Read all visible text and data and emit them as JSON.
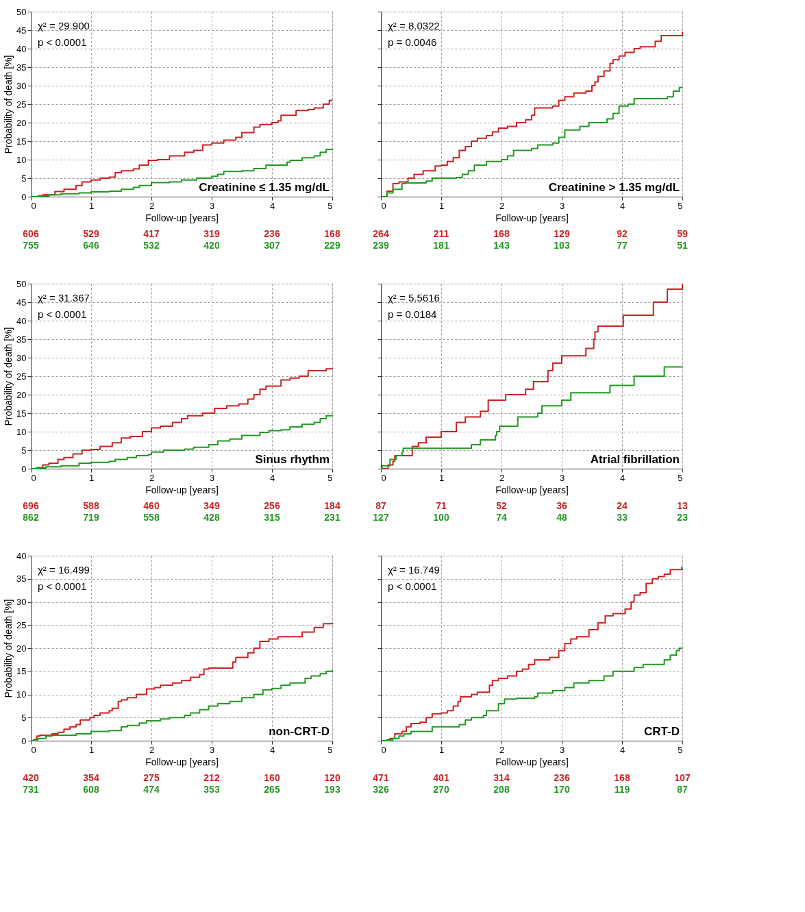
{
  "chart_data": [
    {
      "type": "step",
      "title": "Creatinine ≤ 1.35 mg/dL",
      "xlabel": "Follow-up [years]",
      "ylabel": "Probability of death [%]",
      "xlim": [
        0,
        5
      ],
      "xticks": [
        0,
        1,
        2,
        3,
        4,
        5
      ],
      "ylim": [
        0,
        50
      ],
      "yticks": [
        0,
        5,
        10,
        15,
        20,
        25,
        30,
        35,
        40,
        45,
        50
      ],
      "grid": true,
      "annotations": [
        "χ² =  29.900",
        "p  < 0.0001",
        "606",
        "529",
        "417",
        "319",
        "236",
        "168",
        "755",
        "646",
        "532",
        "420",
        "307",
        "229"
      ],
      "series": [
        {
          "color": "#cc2222",
          "x": [
            0,
            0.12,
            0.2,
            0.4,
            0.55,
            0.75,
            0.85,
            1.0,
            1.15,
            1.3,
            1.4,
            1.5,
            1.7,
            1.8,
            1.95,
            2.1,
            2.3,
            2.55,
            2.7,
            2.85,
            3.0,
            3.2,
            3.4,
            3.5,
            3.7,
            3.8,
            4.0,
            4.1,
            4.15,
            4.4,
            4.6,
            4.7,
            4.85,
            4.95,
            5.0
          ],
          "values": [
            0,
            0.2,
            0.5,
            1.4,
            2,
            3,
            4,
            4.5,
            5,
            5.3,
            6.5,
            7,
            7.5,
            8.5,
            9.8,
            10,
            11,
            12,
            12.5,
            14,
            14.5,
            15.3,
            16,
            17.3,
            18.8,
            19.5,
            20,
            20.5,
            22,
            23.3,
            23.5,
            24,
            25,
            26,
            26
          ]
        },
        {
          "color": "#229922",
          "x": [
            0,
            0.15,
            0.3,
            0.5,
            0.8,
            1.0,
            1.3,
            1.5,
            1.7,
            1.8,
            2.0,
            2.3,
            2.5,
            2.75,
            3.0,
            3.1,
            3.2,
            3.5,
            3.7,
            3.9,
            4.25,
            4.3,
            4.5,
            4.7,
            4.8,
            4.9,
            5.0
          ],
          "values": [
            0,
            0.2,
            0.5,
            0.8,
            1,
            1.3,
            1.5,
            2,
            2.5,
            3,
            3.8,
            4,
            4.5,
            5,
            5.5,
            6,
            6.8,
            7,
            7.6,
            8.5,
            9.3,
            9.8,
            10.5,
            11,
            12,
            12.8,
            13
          ]
        }
      ]
    },
    {
      "type": "step",
      "title": "Creatinine > 1.35 mg/dL",
      "xlabel": "Follow-up [years]",
      "xlim": [
        0,
        5
      ],
      "xticks": [
        0,
        1,
        2,
        3,
        4,
        5
      ],
      "ylim": [
        0,
        50
      ],
      "yticks": [
        0,
        5,
        10,
        15,
        20,
        25,
        30,
        35,
        40,
        45,
        50
      ],
      "grid": true,
      "tick_labels": "x",
      "annotations": [
        "χ² =  8.0322",
        "p  = 0.0046",
        "264",
        "211",
        "168",
        "129",
        "92",
        "59",
        "239",
        "181",
        "143",
        "103",
        "77",
        "51"
      ],
      "series": [
        {
          "color": "#cc2222",
          "x": [
            0,
            0.1,
            0.2,
            0.3,
            0.45,
            0.55,
            0.7,
            0.9,
            1.0,
            1.1,
            1.2,
            1.3,
            1.4,
            1.5,
            1.6,
            1.75,
            1.85,
            1.95,
            2.1,
            2.25,
            2.4,
            2.5,
            2.55,
            2.85,
            2.95,
            3.05,
            3.2,
            3.4,
            3.5,
            3.55,
            3.6,
            3.7,
            3.8,
            3.85,
            3.95,
            4.05,
            4.2,
            4.3,
            4.55,
            4.65,
            4.99,
            5.0
          ],
          "values": [
            0,
            1.5,
            3.5,
            4,
            5,
            6,
            7,
            8.3,
            8.5,
            9.5,
            10.5,
            12.5,
            13.5,
            15,
            15.8,
            16.5,
            17.5,
            18.5,
            19,
            20,
            20.8,
            22,
            24,
            24.5,
            26,
            27,
            28,
            28.5,
            30,
            31,
            32.5,
            34,
            36,
            37,
            38,
            39,
            40,
            40.5,
            42,
            43.5,
            43.5,
            44.5
          ]
        },
        {
          "color": "#229922",
          "x": [
            0,
            0.1,
            0.2,
            0.35,
            0.4,
            0.75,
            0.85,
            1.25,
            1.35,
            1.45,
            1.55,
            1.75,
            2.0,
            2.1,
            2.2,
            2.5,
            2.6,
            2.85,
            2.95,
            3.05,
            3.3,
            3.45,
            3.75,
            3.85,
            3.95,
            4.1,
            4.2,
            4.75,
            4.85,
            4.95,
            5.0
          ],
          "values": [
            0,
            1,
            2,
            3.5,
            3.7,
            4.2,
            5,
            5.2,
            6,
            7,
            8.5,
            9.5,
            10,
            11,
            12.5,
            13,
            14,
            14.5,
            16,
            18,
            19,
            20,
            21,
            22.5,
            24.5,
            25,
            26.5,
            27,
            28.5,
            29.5,
            29.5
          ]
        }
      ]
    },
    {
      "type": "step",
      "title": "Sinus rhythm",
      "xlabel": "Follow-up [years]",
      "ylabel": "Probability of death [%]",
      "xlim": [
        0,
        5
      ],
      "xticks": [
        0,
        1,
        2,
        3,
        4,
        5
      ],
      "ylim": [
        0,
        50
      ],
      "yticks": [
        0,
        5,
        10,
        15,
        20,
        25,
        30,
        35,
        40,
        45,
        50
      ],
      "grid": true,
      "annotations": [
        "χ² =  31.367",
        "p  < 0.0001",
        "696",
        "588",
        "460",
        "349",
        "256",
        "184",
        "862",
        "719",
        "558",
        "428",
        "315",
        "231"
      ],
      "series": [
        {
          "color": "#cc2222",
          "x": [
            0,
            0.1,
            0.2,
            0.3,
            0.45,
            0.55,
            0.7,
            0.85,
            1.0,
            1.15,
            1.35,
            1.5,
            1.65,
            1.85,
            2.0,
            2.15,
            2.35,
            2.5,
            2.6,
            2.85,
            3.05,
            3.25,
            3.45,
            3.6,
            3.7,
            3.8,
            3.9,
            4.15,
            4.3,
            4.45,
            4.6,
            4.9,
            5.0
          ],
          "values": [
            0,
            0.3,
            1,
            1.5,
            2.5,
            3,
            4,
            5,
            5.2,
            6,
            7,
            8.3,
            8.7,
            10,
            11,
            11.5,
            12.5,
            13.5,
            14.3,
            15,
            16.3,
            17,
            17.5,
            18.8,
            20,
            21.5,
            22.3,
            24,
            24.5,
            25,
            26.5,
            27,
            27.2
          ]
        },
        {
          "color": "#229922",
          "x": [
            0,
            0.15,
            0.25,
            0.5,
            0.8,
            1.0,
            1.3,
            1.4,
            1.6,
            1.75,
            1.95,
            2.0,
            2.2,
            2.55,
            2.7,
            2.95,
            3.1,
            3.3,
            3.5,
            3.8,
            3.95,
            4.15,
            4.3,
            4.5,
            4.7,
            4.8,
            4.9,
            5.0
          ],
          "values": [
            0,
            0.2,
            0.5,
            0.8,
            1.5,
            1.7,
            2,
            2.5,
            3,
            3.5,
            3.8,
            4.5,
            5,
            5.3,
            5.8,
            6.5,
            7.5,
            8,
            9,
            9.8,
            10.3,
            10.5,
            11.3,
            12,
            12.5,
            13.5,
            14.3,
            14.5
          ]
        }
      ]
    },
    {
      "type": "step",
      "title": "Atrial fibrillation",
      "xlabel": "Follow-up [years]",
      "xlim": [
        0,
        5
      ],
      "xticks": [
        0,
        1,
        2,
        3,
        4,
        5
      ],
      "ylim": [
        0,
        50
      ],
      "yticks": [
        0,
        5,
        10,
        15,
        20,
        25,
        30,
        35,
        40,
        45,
        50
      ],
      "grid": true,
      "tick_labels": "x",
      "annotations": [
        "χ² =  5.5616",
        "p  = 0.0184",
        "87",
        "71",
        "52",
        "36",
        "24",
        "13",
        "127",
        "100",
        "74",
        "48",
        "33",
        "23"
      ],
      "series": [
        {
          "color": "#cc2222",
          "x": [
            0,
            0.12,
            0.2,
            0.23,
            0.52,
            0.62,
            0.75,
            1.0,
            1.25,
            1.4,
            1.65,
            1.78,
            2.07,
            2.4,
            2.53,
            2.77,
            2.85,
            3.0,
            3.4,
            3.53,
            3.55,
            3.6,
            4.02,
            4.52,
            4.75,
            5.0
          ],
          "values": [
            0,
            1,
            2,
            3.5,
            6,
            7,
            8.5,
            10,
            12.5,
            14,
            15.5,
            18.5,
            20,
            21.5,
            23.5,
            26.5,
            28.5,
            30.5,
            32.5,
            35,
            37,
            38.5,
            41.5,
            45,
            48.5,
            50
          ]
        },
        {
          "color": "#229922",
          "x": [
            0,
            0.02,
            0.15,
            0.25,
            0.35,
            0.37,
            1.5,
            1.65,
            1.9,
            1.92,
            1.97,
            2.27,
            2.6,
            2.67,
            3.0,
            3.15,
            3.8,
            4.2,
            4.7,
            5.0
          ],
          "values": [
            0,
            0.8,
            2.5,
            3.5,
            4.5,
            5.5,
            6.5,
            7.8,
            9,
            10,
            11.5,
            14,
            15,
            17,
            18.5,
            20.5,
            22.5,
            25,
            27.5,
            27.5
          ]
        }
      ]
    },
    {
      "type": "step",
      "title": "non-CRT-D",
      "xlabel": "Follow-up [years]",
      "ylabel": "Probability of death [%]",
      "xlim": [
        0,
        5
      ],
      "xticks": [
        0,
        1,
        2,
        3,
        4,
        5
      ],
      "ylim": [
        0,
        40
      ],
      "yticks": [
        0,
        5,
        10,
        15,
        20,
        25,
        30,
        35,
        40
      ],
      "grid": true,
      "annotations": [
        "χ² =  16.499",
        "p  < 0.0001",
        "420",
        "354",
        "275",
        "212",
        "160",
        "120",
        "731",
        "608",
        "474",
        "353",
        "265",
        "193"
      ],
      "series": [
        {
          "color": "#cc2222",
          "x": [
            0,
            0.05,
            0.1,
            0.15,
            0.35,
            0.45,
            0.55,
            0.65,
            0.75,
            0.82,
            0.98,
            1.05,
            1.15,
            1.3,
            1.35,
            1.45,
            1.5,
            1.6,
            1.75,
            1.92,
            2.05,
            2.15,
            2.35,
            2.5,
            2.65,
            2.8,
            2.87,
            2.95,
            3.35,
            3.4,
            3.6,
            3.7,
            3.8,
            3.95,
            4.1,
            4.5,
            4.7,
            4.85,
            5.0
          ],
          "values": [
            0,
            0.3,
            1,
            1.2,
            1.5,
            1.8,
            2.5,
            3,
            3.5,
            4.5,
            5,
            5.5,
            6,
            6.5,
            7,
            8.5,
            8.8,
            9.3,
            10,
            11.2,
            11.5,
            12,
            12.5,
            13,
            13.7,
            14.3,
            15.5,
            15.7,
            17,
            18,
            19,
            20,
            21.5,
            22,
            22.5,
            23.5,
            24.5,
            25.3,
            25.5
          ]
        },
        {
          "color": "#229922",
          "x": [
            0,
            0.05,
            0.12,
            0.25,
            0.35,
            0.75,
            1.0,
            1.3,
            1.5,
            1.6,
            1.8,
            1.92,
            2.15,
            2.3,
            2.55,
            2.65,
            2.8,
            2.95,
            3.1,
            3.3,
            3.5,
            3.7,
            3.85,
            4.0,
            4.15,
            4.3,
            4.55,
            4.65,
            4.8,
            4.9,
            5.0
          ],
          "values": [
            0,
            0.2,
            0.5,
            1,
            1.2,
            1.5,
            2,
            2.2,
            3,
            3.3,
            3.8,
            4.3,
            4.7,
            5,
            5.5,
            6,
            6.7,
            7.5,
            8,
            8.5,
            9.3,
            10,
            11,
            11.3,
            12,
            12.5,
            13.5,
            14,
            14.5,
            15,
            15.3
          ]
        }
      ]
    },
    {
      "type": "step",
      "title": "CRT-D",
      "xlabel": "Follow-up [years]",
      "xlim": [
        0,
        5
      ],
      "xticks": [
        0,
        1,
        2,
        3,
        4,
        5
      ],
      "ylim": [
        0,
        40
      ],
      "yticks": [
        0,
        5,
        10,
        15,
        20,
        25,
        30,
        35,
        40
      ],
      "grid": true,
      "tick_labels": "x",
      "annotations": [
        "χ² =  16.749",
        "p  < 0.0001",
        "471",
        "401",
        "314",
        "236",
        "168",
        "107",
        "326",
        "270",
        "208",
        "170",
        "119",
        "87"
      ],
      "series": [
        {
          "color": "#cc2222",
          "x": [
            0,
            0.1,
            0.15,
            0.23,
            0.35,
            0.42,
            0.5,
            0.65,
            0.75,
            0.85,
            1.0,
            1.1,
            1.2,
            1.28,
            1.32,
            1.5,
            1.6,
            1.8,
            1.85,
            1.95,
            2.1,
            2.25,
            2.35,
            2.45,
            2.55,
            2.8,
            2.95,
            3.05,
            3.15,
            3.25,
            3.45,
            3.6,
            3.72,
            3.85,
            4.05,
            4.15,
            4.2,
            4.3,
            4.4,
            4.5,
            4.6,
            4.7,
            4.8,
            4.99,
            5.0
          ],
          "values": [
            0,
            0.2,
            0.5,
            1.5,
            2,
            3,
            3.7,
            4,
            5,
            5.8,
            6,
            6.5,
            7.5,
            8.5,
            9.5,
            10,
            10.5,
            12,
            13,
            13.5,
            14,
            15,
            15.5,
            16.5,
            17.5,
            18,
            19.5,
            21,
            22,
            22.5,
            24,
            25.5,
            27,
            27.5,
            28.5,
            30,
            31.5,
            32,
            34,
            35,
            35.5,
            36,
            37,
            37.5,
            37.5
          ]
        },
        {
          "color": "#229922",
          "x": [
            0,
            0.15,
            0.2,
            0.3,
            0.38,
            0.5,
            0.85,
            1.3,
            1.4,
            1.5,
            1.7,
            1.75,
            1.95,
            2.05,
            2.25,
            2.55,
            2.6,
            2.85,
            3.05,
            3.2,
            3.45,
            3.7,
            3.85,
            4.2,
            4.35,
            4.7,
            4.8,
            4.9,
            4.95,
            5.0
          ],
          "values": [
            0,
            0.2,
            0.5,
            1,
            1.5,
            2,
            3,
            3.5,
            4.5,
            5,
            5.5,
            6.5,
            8,
            9,
            9.2,
            9.5,
            10.3,
            10.8,
            11.5,
            12.5,
            13,
            14,
            15,
            15.8,
            16.5,
            17.5,
            18.5,
            19.5,
            20,
            20
          ]
        }
      ]
    }
  ]
}
